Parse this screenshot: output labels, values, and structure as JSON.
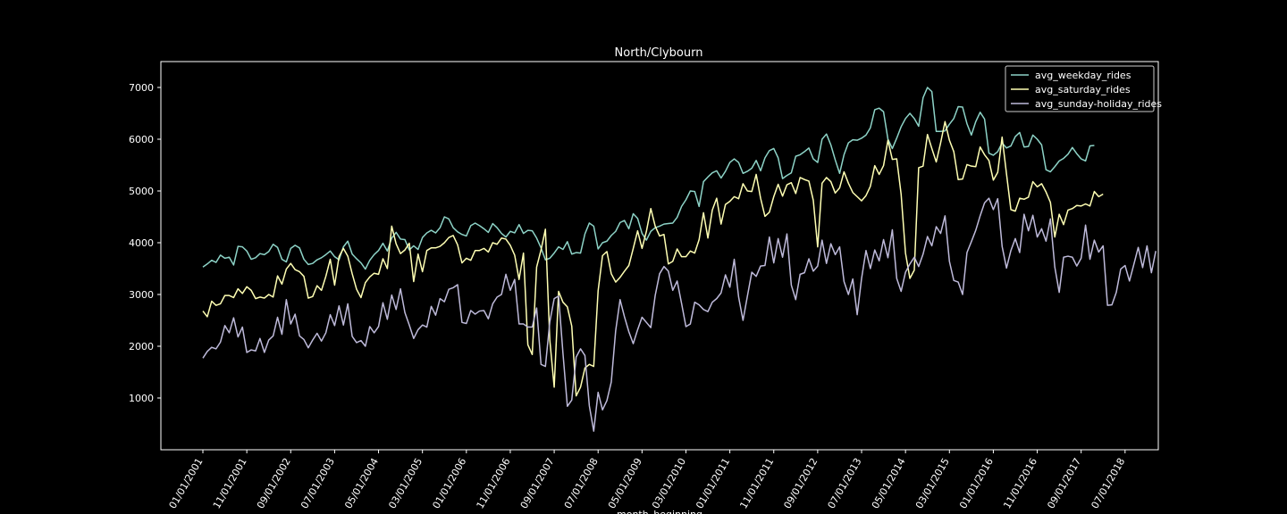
{
  "chart_data": {
    "type": "line",
    "title": "North/Clybourn",
    "xlabel": "month_beginning",
    "ylabel": "",
    "x_start": "01/01/2001",
    "x_end": "05/01/2018",
    "ylim": [
      0,
      7500
    ],
    "y_ticks": [
      1000,
      2000,
      3000,
      4000,
      5000,
      6000,
      7000
    ],
    "x_tick_labels": [
      "01/01/2001",
      "11/01/2001",
      "09/01/2002",
      "07/01/2003",
      "05/01/2004",
      "03/01/2005",
      "01/01/2006",
      "11/01/2006",
      "09/01/2007",
      "07/01/2008",
      "05/01/2009",
      "03/01/2010",
      "01/01/2011",
      "11/01/2011",
      "09/01/2012",
      "07/01/2013",
      "05/01/2014",
      "03/01/2015",
      "01/01/2016",
      "11/01/2016",
      "09/01/2017",
      "07/01/2018"
    ],
    "grid": false,
    "legend_position": "top-right",
    "series": [
      {
        "name": "avg_weekday_rides",
        "color": "#8dd3c7",
        "values": [
          3530,
          3590,
          3660,
          3620,
          3760,
          3700,
          3720,
          3570,
          3930,
          3920,
          3840,
          3680,
          3710,
          3790,
          3770,
          3830,
          3970,
          3910,
          3680,
          3630,
          3890,
          3950,
          3900,
          3680,
          3580,
          3600,
          3670,
          3710,
          3770,
          3840,
          3730,
          3670,
          3920,
          4030,
          3780,
          3690,
          3610,
          3490,
          3660,
          3770,
          3850,
          3990,
          3840,
          4090,
          4200,
          4070,
          4060,
          3860,
          3940,
          3870,
          4100,
          4190,
          4240,
          4190,
          4290,
          4500,
          4460,
          4290,
          4210,
          4160,
          4130,
          4330,
          4380,
          4330,
          4270,
          4200,
          4370,
          4290,
          4180,
          4110,
          4220,
          4190,
          4350,
          4180,
          4240,
          4230,
          4090,
          3900,
          3670,
          3700,
          3800,
          3920,
          3870,
          4020,
          3780,
          3810,
          3800,
          4170,
          4380,
          4320,
          3880,
          4000,
          4030,
          4140,
          4220,
          4390,
          4430,
          4270,
          4560,
          4470,
          4180,
          4050,
          4220,
          4290,
          4320,
          4360,
          4370,
          4380,
          4490,
          4700,
          4830,
          5000,
          4990,
          4700,
          5180,
          5270,
          5350,
          5390,
          5250,
          5380,
          5550,
          5620,
          5550,
          5340,
          5380,
          5440,
          5590,
          5390,
          5640,
          5780,
          5820,
          5640,
          5240,
          5300,
          5350,
          5670,
          5700,
          5760,
          5830,
          5620,
          5550,
          6000,
          6100,
          5890,
          5600,
          5340,
          5700,
          5930,
          5990,
          5980,
          6020,
          6080,
          6220,
          6570,
          6600,
          6530,
          6000,
          5820,
          6020,
          6240,
          6400,
          6500,
          6400,
          6250,
          6800,
          7000,
          6920,
          6150,
          6150,
          6160,
          6290,
          6400,
          6630,
          6620,
          6300,
          6080,
          6340,
          6520,
          6390,
          5730,
          5690,
          5760,
          5930,
          5830,
          5870,
          6050,
          6130,
          5850,
          5860,
          6080,
          6000,
          5890,
          5410,
          5370,
          5470,
          5580,
          5630,
          5710,
          5840,
          5720,
          5620,
          5580,
          5870,
          5880
        ]
      },
      {
        "name": "avg_saturday_rides",
        "color": "#ffffb3",
        "values": [
          2680,
          2570,
          2870,
          2790,
          2820,
          2980,
          2980,
          2940,
          3110,
          3020,
          3150,
          3080,
          2920,
          2950,
          2930,
          3000,
          2950,
          3360,
          3200,
          3490,
          3600,
          3480,
          3440,
          3350,
          2930,
          2960,
          3170,
          3080,
          3350,
          3680,
          3180,
          3730,
          3890,
          3740,
          3400,
          3100,
          2940,
          3230,
          3340,
          3410,
          3390,
          3690,
          3500,
          4320,
          3980,
          3790,
          3860,
          3990,
          3250,
          3780,
          3440,
          3850,
          3900,
          3900,
          3930,
          4000,
          4100,
          4140,
          3960,
          3610,
          3700,
          3660,
          3850,
          3850,
          3890,
          3820,
          4000,
          3970,
          4090,
          4070,
          3950,
          3760,
          3290,
          3800,
          2030,
          1840,
          3530,
          3860,
          4260,
          2120,
          1210,
          3060,
          2850,
          2760,
          2390,
          1040,
          1210,
          1580,
          1650,
          1610,
          3070,
          3750,
          3830,
          3400,
          3240,
          3330,
          3450,
          3560,
          3890,
          4230,
          3890,
          4220,
          4660,
          4320,
          4130,
          4160,
          3590,
          3640,
          3880,
          3730,
          3730,
          3840,
          3800,
          4060,
          4580,
          4090,
          4630,
          4860,
          4360,
          4740,
          4800,
          4890,
          4850,
          5140,
          5000,
          4990,
          5320,
          4860,
          4510,
          4590,
          4890,
          5130,
          4900,
          5120,
          5160,
          4950,
          5260,
          5220,
          5190,
          4820,
          3920,
          5150,
          5260,
          5180,
          4960,
          5060,
          5370,
          5150,
          4970,
          4890,
          4810,
          4910,
          5090,
          5490,
          5320,
          5490,
          5980,
          5610,
          5620,
          4940,
          3800,
          3310,
          3470,
          5450,
          5480,
          6090,
          5820,
          5560,
          5930,
          6340,
          5980,
          5760,
          5220,
          5230,
          5510,
          5480,
          5470,
          5850,
          5700,
          5590,
          5210,
          5360,
          6040,
          5330,
          4640,
          4610,
          4860,
          4840,
          4880,
          5180,
          5080,
          5140,
          4980,
          4780,
          4110,
          4550,
          4350,
          4630,
          4660,
          4720,
          4710,
          4750,
          4710,
          4990,
          4890,
          4940
        ]
      },
      {
        "name": "avg_sunday-holiday_rides",
        "color": "#bebada",
        "values": [
          1770,
          1900,
          1980,
          1950,
          2080,
          2400,
          2260,
          2550,
          2180,
          2370,
          1880,
          1930,
          1910,
          2150,
          1880,
          2120,
          2200,
          2560,
          2230,
          2900,
          2430,
          2620,
          2200,
          2130,
          1970,
          2120,
          2250,
          2100,
          2260,
          2610,
          2400,
          2780,
          2410,
          2820,
          2190,
          2070,
          2110,
          2000,
          2380,
          2260,
          2380,
          2840,
          2520,
          2990,
          2710,
          3110,
          2650,
          2410,
          2150,
          2320,
          2410,
          2370,
          2770,
          2600,
          2920,
          2860,
          3100,
          3130,
          3190,
          2460,
          2440,
          2690,
          2620,
          2680,
          2690,
          2530,
          2820,
          2950,
          3000,
          3390,
          3080,
          3290,
          2430,
          2430,
          2370,
          2370,
          2740,
          1650,
          1610,
          2470,
          2920,
          2970,
          1860,
          840,
          960,
          1790,
          1950,
          1820,
          850,
          360,
          1110,
          770,
          950,
          1310,
          2300,
          2900,
          2570,
          2280,
          2050,
          2320,
          2560,
          2460,
          2360,
          2980,
          3400,
          3540,
          3450,
          3080,
          3260,
          2830,
          2380,
          2430,
          2850,
          2800,
          2710,
          2670,
          2850,
          2920,
          3030,
          3380,
          3140,
          3680,
          2950,
          2500,
          2970,
          3430,
          3350,
          3550,
          3560,
          4110,
          3610,
          4080,
          3720,
          4170,
          3180,
          2900,
          3390,
          3420,
          3690,
          3450,
          3550,
          4050,
          3600,
          3980,
          3770,
          3920,
          3250,
          3000,
          3300,
          2610,
          3310,
          3850,
          3500,
          3860,
          3650,
          4060,
          3710,
          4250,
          3310,
          3060,
          3430,
          3590,
          3720,
          3540,
          3780,
          4120,
          3940,
          4310,
          4180,
          4520,
          3640,
          3270,
          3240,
          3000,
          3810,
          4020,
          4240,
          4520,
          4770,
          4860,
          4640,
          4850,
          3930,
          3510,
          3850,
          4080,
          3810,
          4550,
          4230,
          4530,
          4110,
          4270,
          4030,
          4460,
          3530,
          3040,
          3720,
          3740,
          3720,
          3550,
          3700,
          4340,
          3680,
          4050,
          3820,
          3940,
          2790,
          2800,
          3040,
          3490,
          3560,
          3260,
          3580,
          3910,
          3520,
          3940,
          3420,
          3840
        ]
      }
    ]
  }
}
